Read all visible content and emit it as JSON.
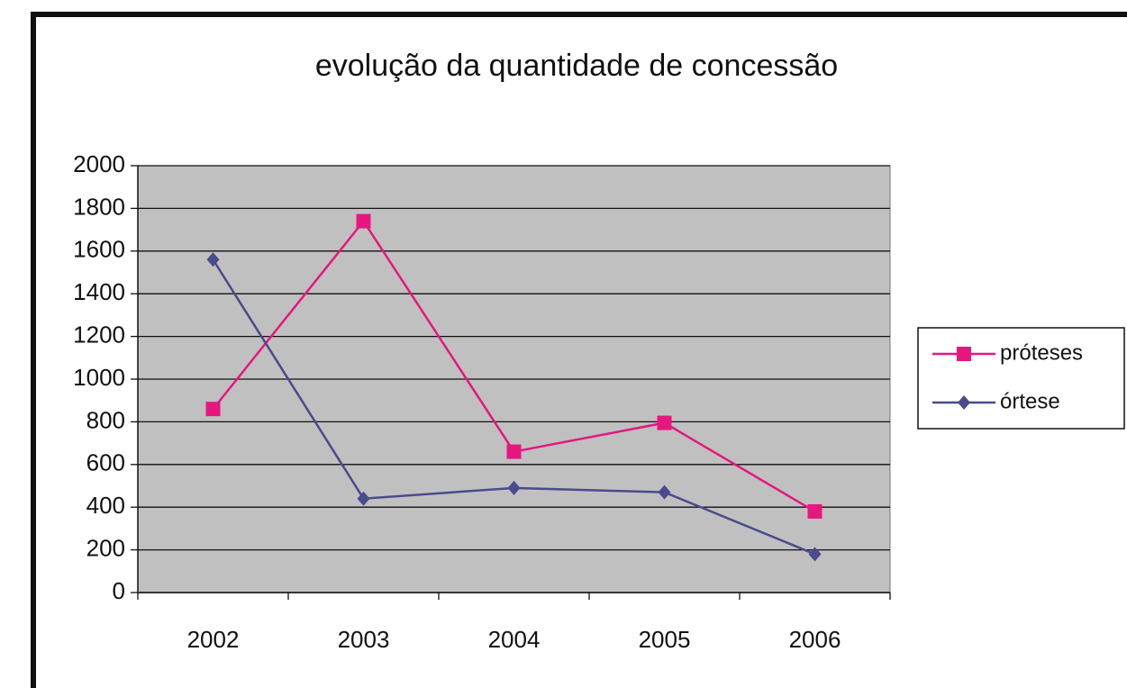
{
  "chart_data": {
    "type": "line",
    "title": "evolução da quantidade de concessão",
    "categories": [
      "2002",
      "2003",
      "2004",
      "2005",
      "2006"
    ],
    "series": [
      {
        "name": "próteses",
        "color": "#e6177f",
        "marker": "square",
        "values": [
          860,
          1740,
          660,
          795,
          380
        ]
      },
      {
        "name": "órtese",
        "color": "#4a4a8c",
        "marker": "diamond",
        "values": [
          1560,
          440,
          490,
          470,
          180
        ]
      }
    ],
    "ylim": [
      0,
      2000
    ],
    "yticks": [
      0,
      200,
      400,
      600,
      800,
      1000,
      1200,
      1400,
      1600,
      1800,
      2000
    ],
    "grid": true,
    "legend": "right"
  }
}
